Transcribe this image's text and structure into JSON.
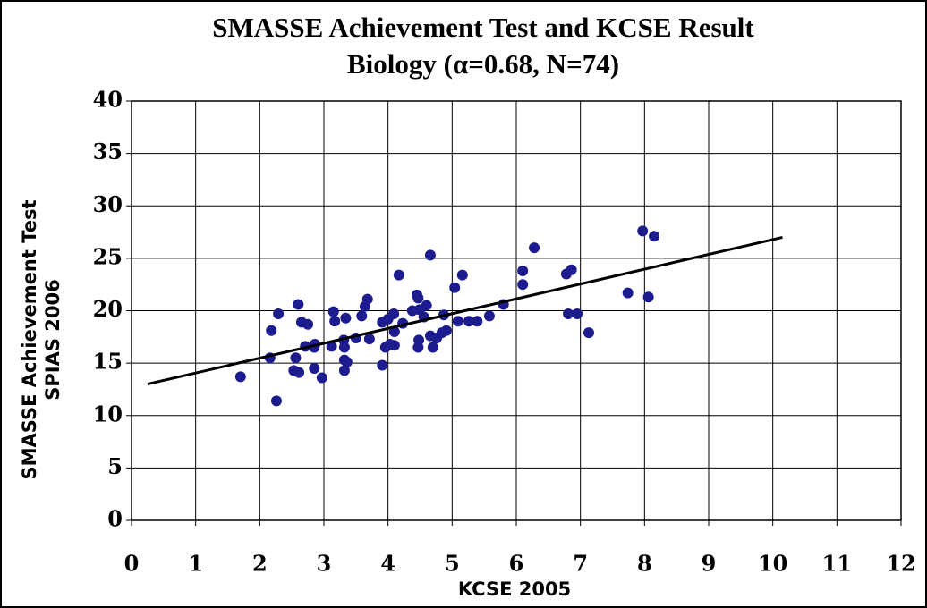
{
  "chart_data": {
    "type": "scatter",
    "title": "SMASSE Achievement Test and KCSE Result",
    "subtitle": "Biology (α=0.68, N=74)",
    "x_label": "KCSE 2005",
    "y_label": [
      "SMASSE Achievement Test",
      "SPIAS 2006"
    ],
    "xlim": [
      0,
      12
    ],
    "xticks": [
      0,
      1,
      2,
      3,
      4,
      5,
      6,
      7,
      8,
      9,
      10,
      11,
      12
    ],
    "ylim": [
      0,
      40
    ],
    "yticks": [
      0,
      5,
      10,
      15,
      20,
      25,
      30,
      35,
      40
    ],
    "grid": true,
    "series": [
      {
        "color": "#1c1c8f",
        "x": [
          1.7,
          2.18,
          2.16,
          2.29,
          2.26,
          2.53,
          2.56,
          2.61,
          2.6,
          2.65,
          2.75,
          2.71,
          2.85,
          2.86,
          2.85,
          2.97,
          3.15,
          3.17,
          3.12,
          3.31,
          3.34,
          3.32,
          3.32,
          3.36,
          3.32,
          3.5,
          3.64,
          3.68,
          3.71,
          3.91,
          3.96,
          3.91,
          4.0,
          4.03,
          4.09,
          4.1,
          4.1,
          4.17,
          4.23,
          4.45,
          4.47,
          4.49,
          4.48,
          4.47,
          4.56,
          4.6,
          4.66,
          4.66,
          4.7,
          4.76,
          4.84,
          4.87,
          4.91,
          5.04,
          5.09,
          5.16,
          5.26,
          5.39,
          5.58,
          5.8,
          6.1,
          6.1,
          6.28,
          6.78,
          6.86,
          6.81,
          6.95,
          7.13,
          7.74,
          7.97,
          8.06,
          8.15,
          4.38,
          3.59
        ],
        "values": [
          13.7,
          18.1,
          15.5,
          19.7,
          11.4,
          14.3,
          15.5,
          14.1,
          20.6,
          18.9,
          18.7,
          16.6,
          16.5,
          16.8,
          14.5,
          13.6,
          19.9,
          19.0,
          16.6,
          17.2,
          19.3,
          16.5,
          15.3,
          15.1,
          14.3,
          17.4,
          20.4,
          21.1,
          17.3,
          18.9,
          16.5,
          14.8,
          19.2,
          16.8,
          19.7,
          18.0,
          16.7,
          23.4,
          18.8,
          21.5,
          21.2,
          20.1,
          17.2,
          16.5,
          19.4,
          20.5,
          25.3,
          17.6,
          16.5,
          17.4,
          17.9,
          19.6,
          18.1,
          22.2,
          19.0,
          23.4,
          19.0,
          19.0,
          19.5,
          20.6,
          23.8,
          22.5,
          26.0,
          23.5,
          23.9,
          19.7,
          19.7,
          17.9,
          21.7,
          27.6,
          21.3,
          27.1,
          20.0,
          19.5
        ]
      }
    ],
    "trendline": {
      "color": "#000000",
      "x": [
        0.25,
        10.15
      ],
      "values": [
        13,
        27
      ]
    }
  }
}
